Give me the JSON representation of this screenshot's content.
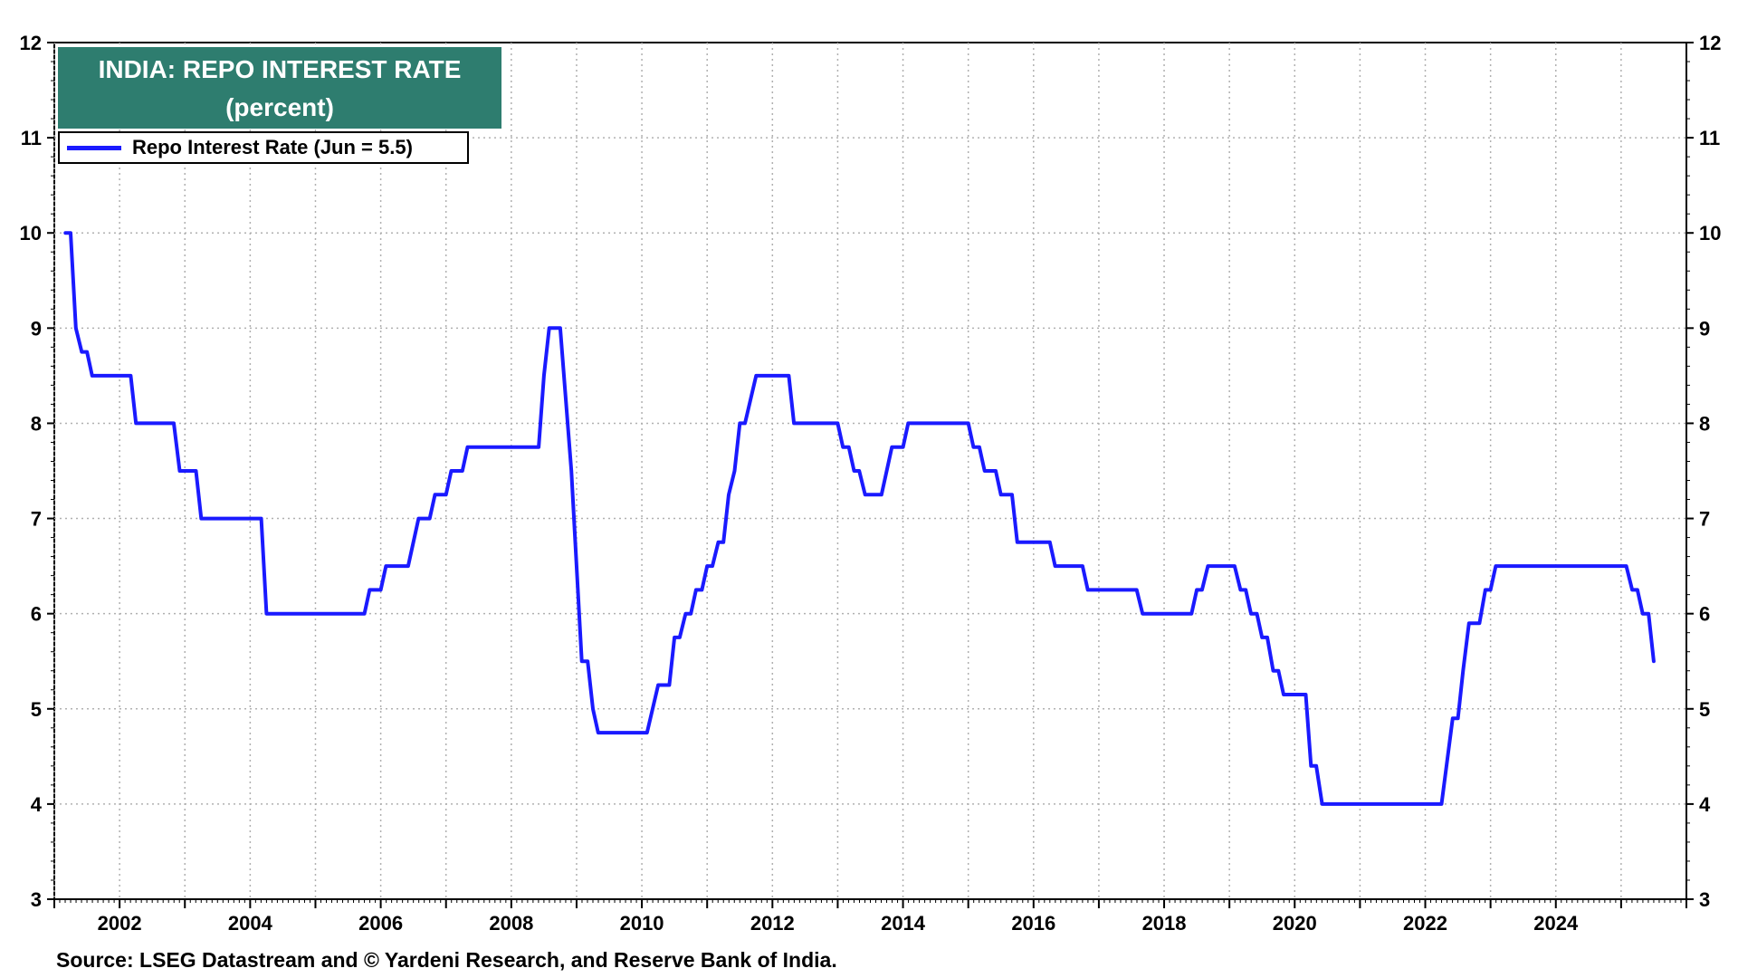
{
  "colors": {
    "series": "#1a1aff",
    "title_bg": "#2e7d6f",
    "grid": "#b0b0b0"
  },
  "chart_data": {
    "type": "line",
    "title": "INDIA: REPO INTEREST RATE",
    "subtitle": "(percent)",
    "source": "Source: LSEG Datastream and © Yardeni Research, and Reserve Bank of India.",
    "xlabel": "",
    "ylabel": "",
    "xlim": [
      2001.0,
      2026.0
    ],
    "ylim": [
      3,
      12
    ],
    "x_ticks": [
      "2002",
      "2004",
      "2006",
      "2008",
      "2010",
      "2012",
      "2014",
      "2016",
      "2018",
      "2020",
      "2022",
      "2024"
    ],
    "y_ticks": [
      "3",
      "4",
      "5",
      "6",
      "7",
      "8",
      "9",
      "10",
      "11",
      "12"
    ],
    "grid": true,
    "legend": "top-left",
    "series": [
      {
        "name": "Repo Interest Rate (Jun = 5.5)",
        "points": [
          [
            2001.17,
            10
          ],
          [
            2001.25,
            10
          ],
          [
            2001.33,
            9
          ],
          [
            2001.42,
            8.75
          ],
          [
            2001.5,
            8.75
          ],
          [
            2001.58,
            8.5
          ],
          [
            2002.17,
            8.5
          ],
          [
            2002.25,
            8.0
          ],
          [
            2002.83,
            8.0
          ],
          [
            2002.92,
            7.5
          ],
          [
            2003.17,
            7.5
          ],
          [
            2003.25,
            7.0
          ],
          [
            2004.17,
            7.0
          ],
          [
            2004.25,
            6.0
          ],
          [
            2005.75,
            6.0
          ],
          [
            2005.83,
            6.25
          ],
          [
            2006.0,
            6.25
          ],
          [
            2006.08,
            6.5
          ],
          [
            2006.42,
            6.5
          ],
          [
            2006.58,
            7.0
          ],
          [
            2006.75,
            7.0
          ],
          [
            2006.83,
            7.25
          ],
          [
            2007.0,
            7.25
          ],
          [
            2007.08,
            7.5
          ],
          [
            2007.25,
            7.5
          ],
          [
            2007.33,
            7.75
          ],
          [
            2008.42,
            7.75
          ],
          [
            2008.5,
            8.5
          ],
          [
            2008.58,
            9.0
          ],
          [
            2008.75,
            9.0
          ],
          [
            2008.92,
            7.5
          ],
          [
            2009.08,
            5.5
          ],
          [
            2009.17,
            5.5
          ],
          [
            2009.25,
            5.0
          ],
          [
            2009.33,
            4.75
          ],
          [
            2010.08,
            4.75
          ],
          [
            2010.25,
            5.25
          ],
          [
            2010.42,
            5.25
          ],
          [
            2010.5,
            5.75
          ],
          [
            2010.58,
            5.75
          ],
          [
            2010.67,
            6.0
          ],
          [
            2010.75,
            6.0
          ],
          [
            2010.83,
            6.25
          ],
          [
            2010.92,
            6.25
          ],
          [
            2011.0,
            6.5
          ],
          [
            2011.08,
            6.5
          ],
          [
            2011.17,
            6.75
          ],
          [
            2011.25,
            6.75
          ],
          [
            2011.33,
            7.25
          ],
          [
            2011.42,
            7.5
          ],
          [
            2011.5,
            8.0
          ],
          [
            2011.58,
            8.0
          ],
          [
            2011.75,
            8.5
          ],
          [
            2012.25,
            8.5
          ],
          [
            2012.33,
            8.0
          ],
          [
            2013.0,
            8.0
          ],
          [
            2013.08,
            7.75
          ],
          [
            2013.17,
            7.75
          ],
          [
            2013.25,
            7.5
          ],
          [
            2013.33,
            7.5
          ],
          [
            2013.42,
            7.25
          ],
          [
            2013.67,
            7.25
          ],
          [
            2013.83,
            7.75
          ],
          [
            2014.0,
            7.75
          ],
          [
            2014.08,
            8.0
          ],
          [
            2015.0,
            8.0
          ],
          [
            2015.08,
            7.75
          ],
          [
            2015.17,
            7.75
          ],
          [
            2015.25,
            7.5
          ],
          [
            2015.42,
            7.5
          ],
          [
            2015.5,
            7.25
          ],
          [
            2015.67,
            7.25
          ],
          [
            2015.75,
            6.75
          ],
          [
            2016.25,
            6.75
          ],
          [
            2016.33,
            6.5
          ],
          [
            2016.75,
            6.5
          ],
          [
            2016.83,
            6.25
          ],
          [
            2017.58,
            6.25
          ],
          [
            2017.67,
            6.0
          ],
          [
            2018.42,
            6.0
          ],
          [
            2018.5,
            6.25
          ],
          [
            2018.58,
            6.25
          ],
          [
            2018.67,
            6.5
          ],
          [
            2019.08,
            6.5
          ],
          [
            2019.17,
            6.25
          ],
          [
            2019.25,
            6.25
          ],
          [
            2019.33,
            6.0
          ],
          [
            2019.42,
            6.0
          ],
          [
            2019.5,
            5.75
          ],
          [
            2019.58,
            5.75
          ],
          [
            2019.67,
            5.4
          ],
          [
            2019.75,
            5.4
          ],
          [
            2019.83,
            5.15
          ],
          [
            2020.17,
            5.15
          ],
          [
            2020.25,
            4.4
          ],
          [
            2020.33,
            4.4
          ],
          [
            2020.42,
            4.0
          ],
          [
            2022.25,
            4.0
          ],
          [
            2022.42,
            4.9
          ],
          [
            2022.5,
            4.9
          ],
          [
            2022.58,
            5.4
          ],
          [
            2022.67,
            5.9
          ],
          [
            2022.83,
            5.9
          ],
          [
            2022.92,
            6.25
          ],
          [
            2023.0,
            6.25
          ],
          [
            2023.08,
            6.5
          ],
          [
            2025.08,
            6.5
          ],
          [
            2025.17,
            6.25
          ],
          [
            2025.25,
            6.25
          ],
          [
            2025.33,
            6.0
          ],
          [
            2025.42,
            6.0
          ],
          [
            2025.5,
            5.5
          ]
        ]
      }
    ]
  }
}
